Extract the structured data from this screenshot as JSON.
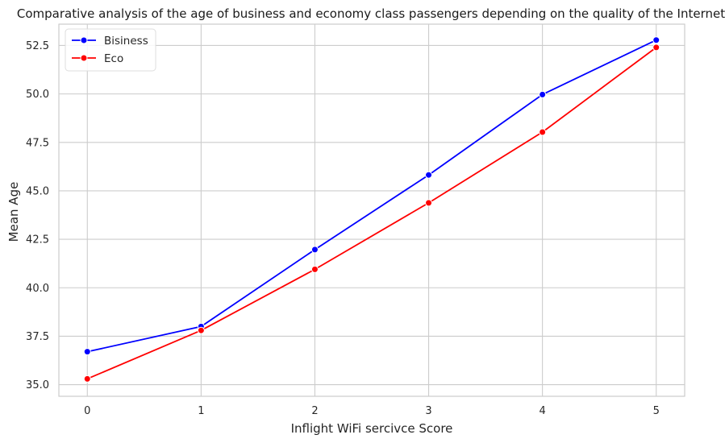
{
  "chart_data": {
    "type": "line",
    "title": "Comparative analysis of the age of business and economy class passengers depending on the quality of the Internet",
    "xlabel": "Inflight WiFi sercivce Score",
    "ylabel": "Mean Age",
    "x": [
      0,
      1,
      2,
      3,
      4,
      5
    ],
    "x_ticks": [
      "0",
      "1",
      "2",
      "3",
      "4",
      "5"
    ],
    "xlim": [
      -0.25,
      5.25
    ],
    "ylim": [
      34.4,
      53.6
    ],
    "y_ticks": [
      "35.0",
      "37.5",
      "40.0",
      "42.5",
      "45.0",
      "47.5",
      "50.0",
      "52.5"
    ],
    "grid": true,
    "legend_position": "top-left",
    "series": [
      {
        "name": "Bisiness",
        "color": "#0000ff",
        "marker": "circle",
        "values": [
          36.7,
          38.0,
          41.97,
          45.82,
          49.97,
          52.78
        ]
      },
      {
        "name": "Eco",
        "color": "#ff0000",
        "marker": "circle",
        "values": [
          35.3,
          37.8,
          40.95,
          44.38,
          48.03,
          52.4
        ]
      }
    ]
  }
}
